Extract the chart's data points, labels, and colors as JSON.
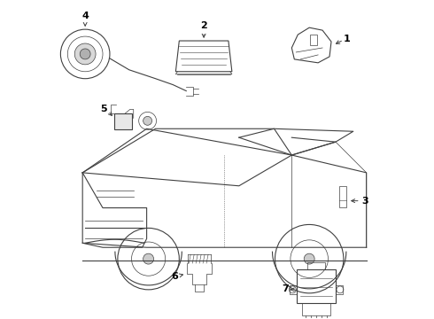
{
  "bg_color": "#ffffff",
  "line_color": "#404040",
  "fig_width": 4.9,
  "fig_height": 3.6,
  "dpi": 100,
  "lw_thin": 0.5,
  "lw_med": 0.8,
  "lw_thick": 1.2,
  "label_fontsize": 8
}
